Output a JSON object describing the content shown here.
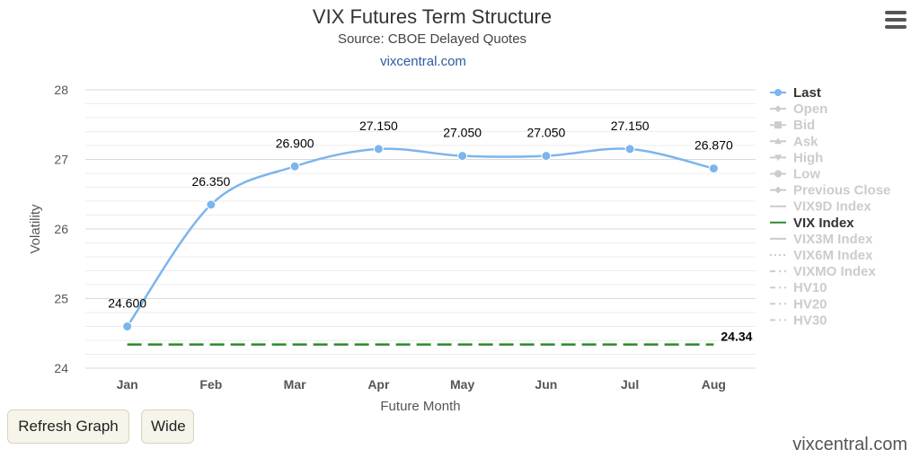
{
  "header": {
    "title": "VIX Futures Term Structure",
    "subtitle": "Source: CBOE Delayed Quotes",
    "link": "vixcentral.com"
  },
  "buttons": {
    "refresh": "Refresh Graph",
    "wide": "Wide"
  },
  "footer": {
    "brand": "vixcentral.com"
  },
  "colors": {
    "last": "#7cb5ec",
    "vix": "#2b8a2b",
    "inactive": "#cccccc",
    "grid": "#e6e6e6"
  },
  "legend": [
    {
      "label": "Last",
      "symbol": "circle",
      "line": "solid",
      "active": true
    },
    {
      "label": "Open",
      "symbol": "diamond",
      "line": "solid",
      "active": false
    },
    {
      "label": "Bid",
      "symbol": "square",
      "line": "solid",
      "active": false
    },
    {
      "label": "Ask",
      "symbol": "triangle",
      "line": "solid",
      "active": false
    },
    {
      "label": "High",
      "symbol": "triangle-down",
      "line": "solid",
      "active": false
    },
    {
      "label": "Low",
      "symbol": "circle",
      "line": "solid",
      "active": false
    },
    {
      "label": "Previous Close",
      "symbol": "diamond",
      "line": "solid",
      "active": false
    },
    {
      "label": "VIX9D Index",
      "symbol": "none",
      "line": "solid",
      "active": false
    },
    {
      "label": "VIX Index",
      "symbol": "none",
      "line": "solid",
      "active": true
    },
    {
      "label": "VIX3M Index",
      "symbol": "none",
      "line": "solid",
      "active": false
    },
    {
      "label": "VIX6M Index",
      "symbol": "none",
      "line": "dot",
      "active": false
    },
    {
      "label": "VIXMO Index",
      "symbol": "none",
      "line": "dashdot",
      "active": false
    },
    {
      "label": "HV10",
      "symbol": "none",
      "line": "dashdot",
      "active": false
    },
    {
      "label": "HV20",
      "symbol": "none",
      "line": "dashdot",
      "active": false
    },
    {
      "label": "HV30",
      "symbol": "none",
      "line": "dashdot",
      "active": false
    }
  ],
  "chart_data": {
    "type": "line",
    "title": "VIX Futures Term Structure",
    "subtitle": "Source: CBOE Delayed Quotes",
    "xlabel": "Future Month",
    "ylabel": "Volatility",
    "categories": [
      "Jan",
      "Feb",
      "Mar",
      "Apr",
      "May",
      "Jun",
      "Jul",
      "Aug"
    ],
    "ylim": [
      24,
      28
    ],
    "yticks": [
      24,
      25,
      26,
      27,
      28
    ],
    "minor_grid_step": 0.2,
    "legend_position": "right",
    "series": [
      {
        "name": "Last",
        "values": [
          24.6,
          26.35,
          26.9,
          27.15,
          27.05,
          27.05,
          27.15,
          26.87
        ],
        "labels": [
          "24.600",
          "26.350",
          "26.900",
          "27.150",
          "27.050",
          "27.050",
          "27.150",
          "26.870"
        ]
      },
      {
        "name": "VIX Index",
        "value": 24.34,
        "label": "24.34",
        "style": "dashed"
      }
    ]
  }
}
